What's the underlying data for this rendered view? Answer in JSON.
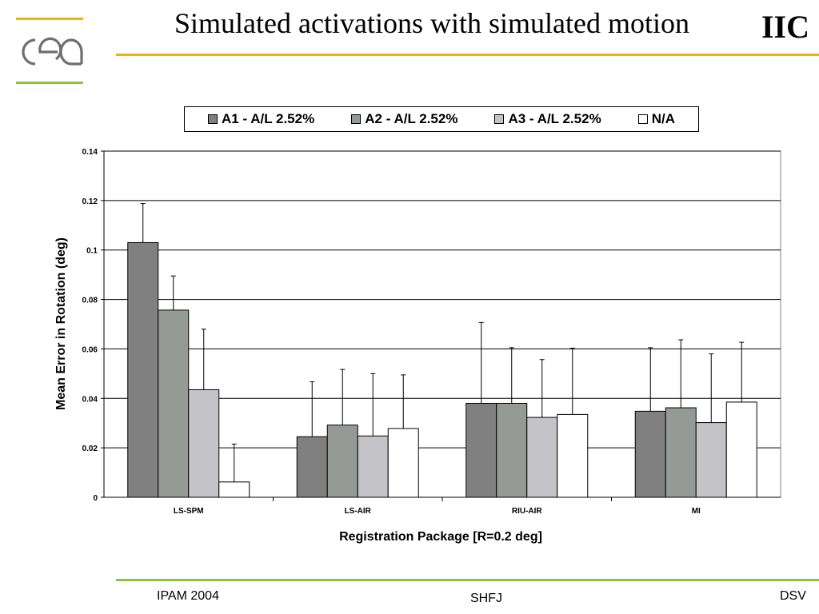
{
  "slide": {
    "title": "Simulated activations with simulated motion",
    "section_tag": "IIC",
    "logo": {
      "icon": "cea-logo",
      "text": "cea"
    },
    "footer": {
      "left": "IPAM 2004",
      "center": "SHFJ",
      "right": "DSV"
    },
    "colors": {
      "accent_orange": "#f0b400",
      "accent_green": "#8cc63f"
    }
  },
  "chart_data": {
    "type": "bar",
    "title": "",
    "xlabel": "Registration Package [R=0.2 deg]",
    "ylabel": "Mean Error in Rotation (deg)",
    "ylim": [
      0,
      0.14
    ],
    "yticks": [
      "0",
      "0.02",
      "0.04",
      "0.06",
      "0.08",
      "0.1",
      "0.12",
      "0.14"
    ],
    "grid": "horizontal",
    "legend_position": "top",
    "categories": [
      "LS-SPM",
      "LS-AIR",
      "RIU-AIR",
      "MI"
    ],
    "series": [
      {
        "name": "A1 - A/L 2.52%",
        "color": "#808080",
        "values": [
          0.103,
          0.0245,
          0.038,
          0.0348
        ],
        "errors": [
          0.0158,
          0.0222,
          0.0327,
          0.0257
        ]
      },
      {
        "name": "A2 - A/L 2.52%",
        "color": "#969a96",
        "values": [
          0.0757,
          0.0292,
          0.038,
          0.0362
        ],
        "errors": [
          0.0138,
          0.0225,
          0.0225,
          0.0275
        ]
      },
      {
        "name": "A3 - A/L 2.52%",
        "color": "#c4c3c8",
        "values": [
          0.0435,
          0.0248,
          0.0323,
          0.0302
        ],
        "errors": [
          0.0245,
          0.0252,
          0.0234,
          0.0278
        ]
      },
      {
        "name": "N/A",
        "color": "#ffffff",
        "values": [
          0.0062,
          0.0278,
          0.0335,
          0.0385
        ],
        "errors": [
          0.0153,
          0.0217,
          0.0268,
          0.0242
        ]
      }
    ]
  }
}
